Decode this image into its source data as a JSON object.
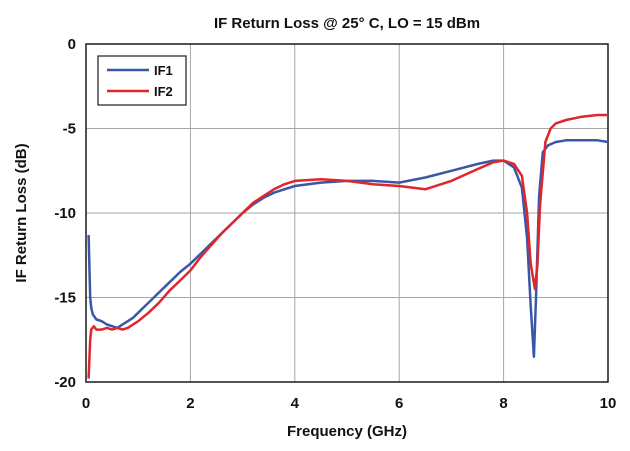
{
  "chart_data": {
    "type": "line",
    "title": "IF Return Loss @ 25° C, LO = 15 dBm",
    "xlabel": "Frequency (GHz)",
    "ylabel": "IF Return Loss (dB)",
    "xlim": [
      0,
      10
    ],
    "ylim": [
      -20,
      0
    ],
    "x_ticks": [
      0,
      2,
      4,
      6,
      8,
      10
    ],
    "y_ticks": [
      0,
      -5,
      -10,
      -15,
      -20
    ],
    "x_tick_labels": [
      "0",
      "2",
      "4",
      "6",
      "8",
      "10"
    ],
    "y_tick_labels": [
      "0",
      "-5",
      "-10",
      "-15",
      "-20"
    ],
    "grid": true,
    "legend_position": "top-left",
    "series": [
      {
        "name": "IF1",
        "color": "#3a57a7",
        "x": [
          0.05,
          0.08,
          0.1,
          0.13,
          0.2,
          0.3,
          0.4,
          0.5,
          0.6,
          0.7,
          0.8,
          0.9,
          1.0,
          1.2,
          1.4,
          1.6,
          1.8,
          2.0,
          2.2,
          2.4,
          2.6,
          2.8,
          3.0,
          3.2,
          3.4,
          3.6,
          3.8,
          4.0,
          4.5,
          5.0,
          5.5,
          6.0,
          6.5,
          7.0,
          7.5,
          7.8,
          8.0,
          8.2,
          8.35,
          8.45,
          8.52,
          8.58,
          8.62,
          8.68,
          8.75,
          8.85,
          9.0,
          9.2,
          9.5,
          9.8,
          10.0
        ],
        "y": [
          -11.3,
          -15.0,
          -15.6,
          -16.0,
          -16.3,
          -16.4,
          -16.6,
          -16.7,
          -16.8,
          -16.6,
          -16.4,
          -16.2,
          -15.9,
          -15.3,
          -14.7,
          -14.1,
          -13.5,
          -13.0,
          -12.4,
          -11.8,
          -11.2,
          -10.6,
          -10.0,
          -9.5,
          -9.1,
          -8.8,
          -8.6,
          -8.4,
          -8.2,
          -8.1,
          -8.1,
          -8.2,
          -7.9,
          -7.5,
          -7.1,
          -6.9,
          -6.9,
          -7.3,
          -8.5,
          -11.5,
          -15.5,
          -18.5,
          -15.0,
          -9.0,
          -6.4,
          -6.0,
          -5.8,
          -5.7,
          -5.7,
          -5.7,
          -5.8
        ]
      },
      {
        "name": "IF2",
        "color": "#e0262b",
        "x": [
          0.05,
          0.08,
          0.1,
          0.15,
          0.2,
          0.3,
          0.4,
          0.5,
          0.6,
          0.7,
          0.8,
          0.9,
          1.0,
          1.2,
          1.4,
          1.6,
          1.8,
          2.0,
          2.2,
          2.4,
          2.6,
          2.8,
          3.0,
          3.2,
          3.4,
          3.6,
          3.8,
          4.0,
          4.5,
          5.0,
          5.5,
          6.0,
          6.5,
          7.0,
          7.5,
          7.8,
          8.0,
          8.2,
          8.35,
          8.45,
          8.52,
          8.6,
          8.65,
          8.7,
          8.8,
          8.9,
          9.0,
          9.2,
          9.5,
          9.8,
          10.0
        ],
        "y": [
          -19.8,
          -17.5,
          -16.9,
          -16.7,
          -16.9,
          -16.9,
          -16.8,
          -16.9,
          -16.8,
          -16.9,
          -16.8,
          -16.6,
          -16.4,
          -15.9,
          -15.3,
          -14.6,
          -14.0,
          -13.4,
          -12.6,
          -11.9,
          -11.2,
          -10.6,
          -10.0,
          -9.4,
          -9.0,
          -8.6,
          -8.3,
          -8.1,
          -8.0,
          -8.1,
          -8.3,
          -8.4,
          -8.6,
          -8.1,
          -7.4,
          -7.0,
          -6.9,
          -7.1,
          -7.8,
          -10.0,
          -13.0,
          -14.5,
          -13.0,
          -9.5,
          -5.8,
          -5.0,
          -4.7,
          -4.5,
          -4.3,
          -4.2,
          -4.2
        ]
      }
    ]
  }
}
